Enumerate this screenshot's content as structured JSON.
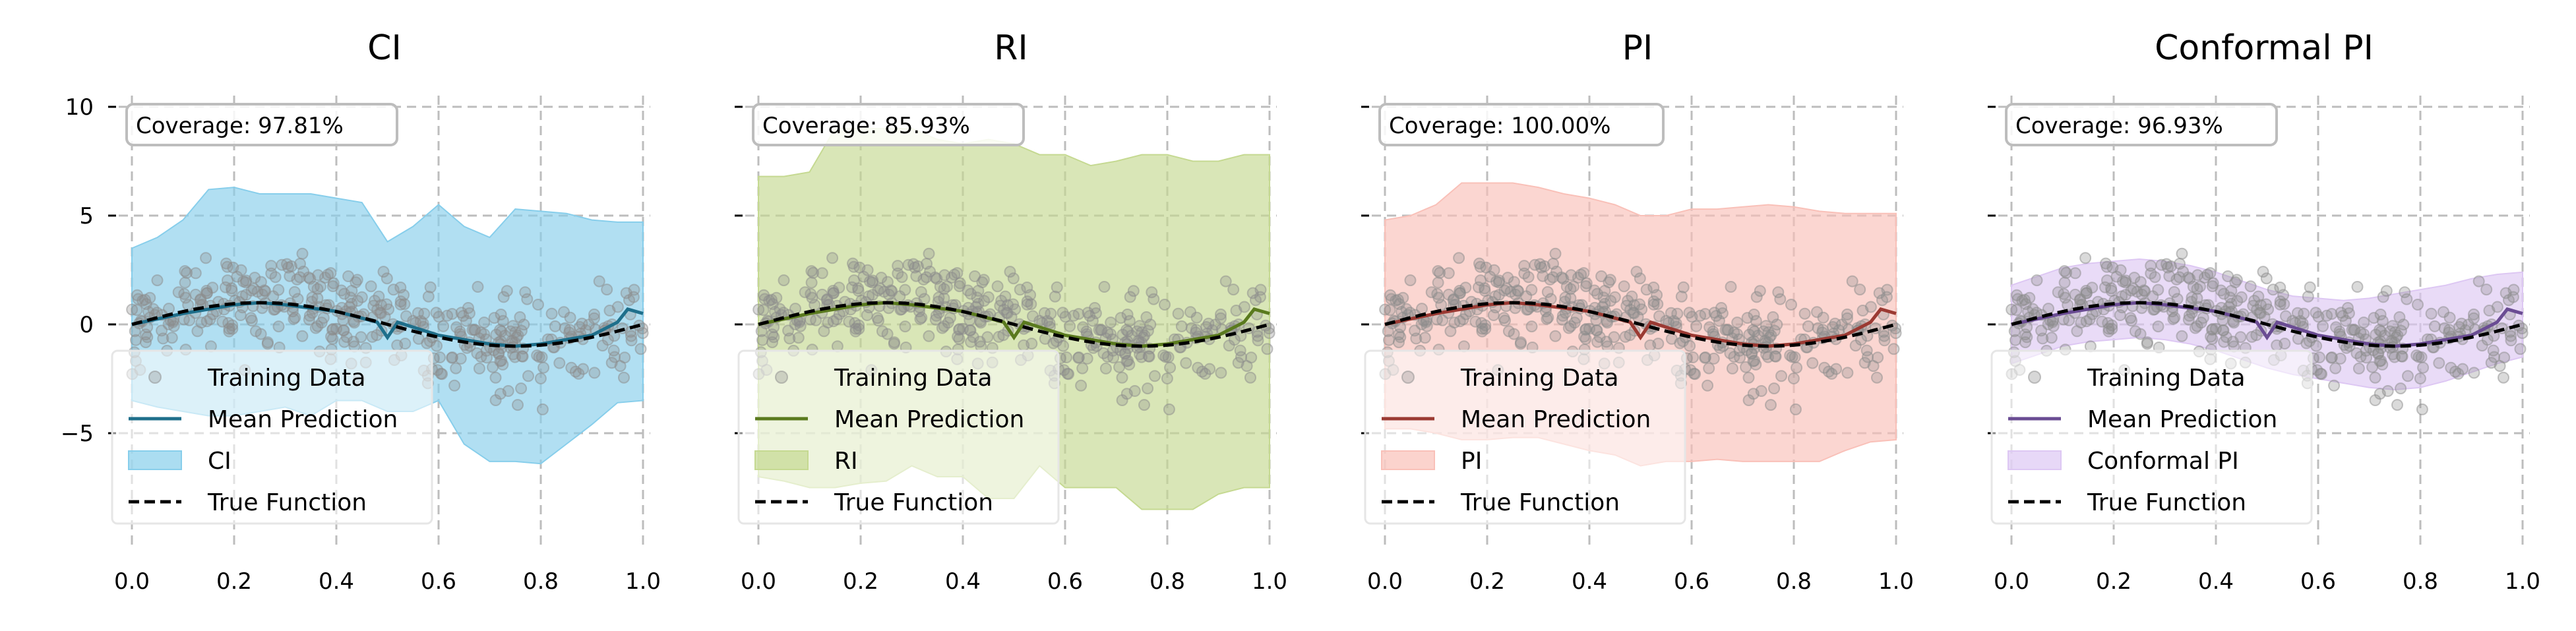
{
  "chart_data": [
    {
      "type": "line",
      "title": "CI",
      "band_label": "CI",
      "coverage_label": "Coverage: 97.81%",
      "xlim": [
        0.0,
        1.0
      ],
      "ylim": [
        -10,
        11
      ],
      "x_ticks": [
        "0.0",
        "0.2",
        "0.4",
        "0.6",
        "0.8",
        "1.0"
      ],
      "y_ticks": [
        "10",
        "5",
        "0",
        "−5"
      ],
      "y_ticks_visible": true,
      "colors": {
        "band": "#87ceeb",
        "mean": "#1f6f8b"
      },
      "band": {
        "x": [
          0.0,
          0.05,
          0.1,
          0.15,
          0.2,
          0.25,
          0.3,
          0.35,
          0.4,
          0.45,
          0.5,
          0.55,
          0.6,
          0.65,
          0.7,
          0.75,
          0.8,
          0.85,
          0.9,
          0.95,
          1.0
        ],
        "upper": [
          3.5,
          4.0,
          4.8,
          6.2,
          6.3,
          6.0,
          6.0,
          6.0,
          5.8,
          5.6,
          3.8,
          4.5,
          5.5,
          4.5,
          4.0,
          5.3,
          5.2,
          5.1,
          4.8,
          4.7,
          4.7
        ],
        "lower": [
          -3.5,
          -3.8,
          -4.0,
          -4.2,
          -4.2,
          -4.0,
          -3.8,
          -4.2,
          -3.5,
          -3.5,
          -4.0,
          -4.0,
          -3.5,
          -5.5,
          -6.3,
          -6.3,
          -6.4,
          -5.5,
          -4.6,
          -3.6,
          -3.5
        ]
      },
      "mean": {
        "x": [
          0.0,
          0.1,
          0.2,
          0.25,
          0.3,
          0.4,
          0.48,
          0.5,
          0.52,
          0.6,
          0.7,
          0.75,
          0.8,
          0.9,
          0.95,
          0.97,
          1.0
        ],
        "y": [
          0.0,
          0.5,
          0.9,
          1.0,
          0.9,
          0.6,
          0.1,
          -0.6,
          0.1,
          -0.5,
          -0.9,
          -1.0,
          -0.9,
          -0.5,
          0.1,
          0.7,
          0.5
        ]
      }
    },
    {
      "type": "line",
      "title": "RI",
      "band_label": "RI",
      "coverage_label": "Coverage: 85.93%",
      "xlim": [
        0.0,
        1.0
      ],
      "ylim": [
        -10,
        11
      ],
      "x_ticks": [
        "0.0",
        "0.2",
        "0.4",
        "0.6",
        "0.8",
        "1.0"
      ],
      "y_ticks": [
        "10",
        "5",
        "0",
        "−5"
      ],
      "y_ticks_visible": false,
      "colors": {
        "band": "#c5d991",
        "mean": "#5a7a1e"
      },
      "band": {
        "x": [
          0.0,
          0.05,
          0.1,
          0.15,
          0.2,
          0.25,
          0.3,
          0.35,
          0.4,
          0.45,
          0.5,
          0.55,
          0.6,
          0.65,
          0.7,
          0.75,
          0.8,
          0.85,
          0.9,
          0.95,
          1.0
        ],
        "upper": [
          6.8,
          6.8,
          7.0,
          9.0,
          9.0,
          9.0,
          9.0,
          8.5,
          8.3,
          8.5,
          8.3,
          7.8,
          7.8,
          7.3,
          7.5,
          7.8,
          7.8,
          7.5,
          7.5,
          7.8,
          7.8
        ],
        "lower": [
          -7.0,
          -7.2,
          -7.5,
          -7.5,
          -7.3,
          -7.2,
          -6.5,
          -7.0,
          -7.0,
          -8.0,
          -8.0,
          -6.5,
          -7.5,
          -7.5,
          -7.5,
          -8.5,
          -8.5,
          -8.5,
          -7.8,
          -7.5,
          -7.5
        ]
      },
      "mean": {
        "x": [
          0.0,
          0.1,
          0.2,
          0.25,
          0.3,
          0.4,
          0.48,
          0.5,
          0.52,
          0.6,
          0.7,
          0.75,
          0.8,
          0.9,
          0.95,
          0.97,
          1.0
        ],
        "y": [
          0.0,
          0.5,
          0.9,
          1.0,
          0.9,
          0.6,
          0.1,
          -0.6,
          0.1,
          -0.5,
          -0.9,
          -1.0,
          -0.9,
          -0.5,
          0.1,
          0.7,
          0.5
        ]
      }
    },
    {
      "type": "line",
      "title": "PI",
      "band_label": "PI",
      "coverage_label": "Coverage: 100.00%",
      "xlim": [
        0.0,
        1.0
      ],
      "ylim": [
        -10,
        11
      ],
      "x_ticks": [
        "0.0",
        "0.2",
        "0.4",
        "0.6",
        "0.8",
        "1.0"
      ],
      "y_ticks": [
        "10",
        "5",
        "0",
        "−5"
      ],
      "y_ticks_visible": false,
      "colors": {
        "band": "#f9c0b8",
        "mean": "#9b3a33"
      },
      "band": {
        "x": [
          0.0,
          0.05,
          0.1,
          0.15,
          0.2,
          0.25,
          0.3,
          0.35,
          0.4,
          0.45,
          0.5,
          0.55,
          0.6,
          0.65,
          0.7,
          0.75,
          0.8,
          0.85,
          0.9,
          0.95,
          1.0
        ],
        "upper": [
          4.8,
          5.0,
          5.5,
          6.5,
          6.5,
          6.5,
          6.3,
          6.0,
          5.8,
          5.5,
          5.0,
          5.0,
          5.3,
          5.3,
          5.4,
          5.5,
          5.4,
          5.2,
          5.1,
          5.1,
          5.1
        ],
        "lower": [
          -4.8,
          -4.8,
          -5.0,
          -5.3,
          -5.3,
          -5.2,
          -5.2,
          -5.5,
          -5.8,
          -6.0,
          -6.5,
          -6.3,
          -6.3,
          -6.2,
          -6.3,
          -6.3,
          -6.3,
          -6.3,
          -5.8,
          -5.4,
          -5.3
        ]
      },
      "mean": {
        "x": [
          0.0,
          0.1,
          0.2,
          0.25,
          0.3,
          0.4,
          0.48,
          0.5,
          0.52,
          0.6,
          0.7,
          0.75,
          0.8,
          0.9,
          0.95,
          0.97,
          1.0
        ],
        "y": [
          0.0,
          0.5,
          0.9,
          1.0,
          0.9,
          0.6,
          0.1,
          -0.6,
          0.1,
          -0.5,
          -0.9,
          -1.0,
          -0.9,
          -0.5,
          0.1,
          0.7,
          0.5
        ]
      }
    },
    {
      "type": "line",
      "title": "Conformal PI",
      "band_label": "Conformal PI",
      "coverage_label": "Coverage: 96.93%",
      "xlim": [
        0.0,
        1.0
      ],
      "ylim": [
        -10,
        11
      ],
      "x_ticks": [
        "0.0",
        "0.2",
        "0.4",
        "0.6",
        "0.8",
        "1.0"
      ],
      "y_ticks": [
        "10",
        "5",
        "0",
        "−5"
      ],
      "y_ticks_visible": false,
      "colors": {
        "band": "#ddc7f3",
        "mean": "#6a4c93"
      },
      "band": {
        "x": [
          0.0,
          0.05,
          0.1,
          0.15,
          0.2,
          0.25,
          0.3,
          0.35,
          0.4,
          0.45,
          0.5,
          0.55,
          0.6,
          0.65,
          0.7,
          0.75,
          0.8,
          0.85,
          0.9,
          0.95,
          1.0
        ],
        "upper": [
          1.8,
          2.2,
          2.6,
          2.8,
          2.9,
          3.0,
          2.9,
          2.7,
          2.4,
          2.0,
          1.6,
          1.3,
          1.2,
          1.1,
          1.2,
          1.4,
          1.6,
          1.8,
          2.1,
          2.3,
          2.4
        ],
        "lower": [
          -1.8,
          -1.4,
          -1.0,
          -0.8,
          -0.7,
          -0.6,
          -0.7,
          -0.9,
          -1.2,
          -1.6,
          -2.0,
          -2.3,
          -2.5,
          -2.7,
          -2.9,
          -3.0,
          -2.9,
          -2.6,
          -2.2,
          -1.8,
          -1.5
        ]
      },
      "mean": {
        "x": [
          0.0,
          0.1,
          0.2,
          0.25,
          0.3,
          0.4,
          0.48,
          0.5,
          0.52,
          0.6,
          0.7,
          0.75,
          0.8,
          0.9,
          0.95,
          0.97,
          1.0
        ],
        "y": [
          0.0,
          0.5,
          0.9,
          1.0,
          0.9,
          0.6,
          0.1,
          -0.6,
          0.1,
          -0.5,
          -0.9,
          -1.0,
          -0.9,
          -0.5,
          0.1,
          0.7,
          0.5
        ]
      }
    }
  ],
  "legend": {
    "training_data": "Training Data",
    "mean_prediction": "Mean Prediction",
    "true_function": "True Function"
  },
  "training_data_color": "#8c8c8c",
  "true_function_color": "#000000"
}
